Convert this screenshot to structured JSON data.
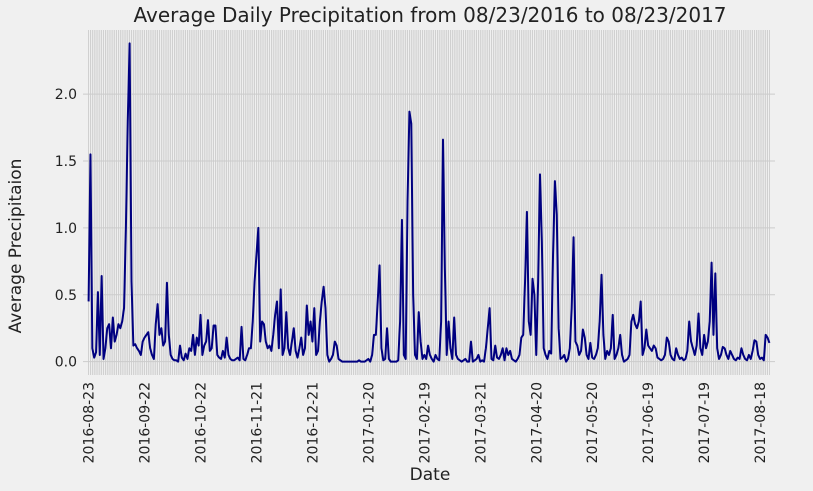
{
  "chart_data": {
    "type": "line",
    "title": "Average Daily Precipitation from 08/23/2016 to 08/23/2017",
    "x_label": "Date",
    "y_label": "Average Precipitaion",
    "categories": [
      "2016-08-23",
      null,
      null,
      null,
      null,
      null,
      null,
      null,
      null,
      null,
      null,
      null,
      null,
      null,
      null,
      null,
      null,
      null,
      null,
      null,
      null,
      null,
      null,
      null,
      null,
      null,
      null,
      null,
      null,
      null,
      "2016-09-22",
      null,
      null,
      null,
      null,
      null,
      null,
      null,
      null,
      null,
      null,
      null,
      null,
      null,
      null,
      null,
      null,
      null,
      null,
      null,
      null,
      null,
      null,
      null,
      null,
      null,
      null,
      null,
      null,
      null,
      "2016-10-22",
      null,
      null,
      null,
      null,
      null,
      null,
      null,
      null,
      null,
      null,
      null,
      null,
      null,
      null,
      null,
      null,
      null,
      null,
      null,
      null,
      null,
      null,
      null,
      null,
      null,
      null,
      null,
      null,
      null,
      "2016-11-21",
      null,
      null,
      null,
      null,
      null,
      null,
      null,
      null,
      null,
      null,
      null,
      null,
      null,
      null,
      null,
      null,
      null,
      null,
      null,
      null,
      null,
      null,
      null,
      null,
      null,
      null,
      null,
      null,
      null,
      "2016-12-21",
      null,
      null,
      null,
      null,
      null,
      null,
      null,
      null,
      null,
      null,
      null,
      null,
      null,
      null,
      null,
      null,
      null,
      null,
      null,
      null,
      null,
      null,
      null,
      null,
      null,
      null,
      null,
      null,
      null,
      "2017-01-20",
      null,
      null,
      null,
      null,
      null,
      null,
      null,
      null,
      null,
      null,
      null,
      null,
      null,
      null,
      null,
      null,
      null,
      null,
      null,
      null,
      null,
      null,
      null,
      null,
      null,
      null,
      null,
      null,
      null,
      "2017-02-19",
      null,
      null,
      null,
      null,
      null,
      null,
      null,
      null,
      null,
      null,
      null,
      null,
      null,
      null,
      null,
      null,
      null,
      null,
      null,
      null,
      null,
      null,
      null,
      null,
      null,
      null,
      null,
      null,
      null,
      "2017-03-21",
      null,
      null,
      null,
      null,
      null,
      null,
      null,
      null,
      null,
      null,
      null,
      null,
      null,
      null,
      null,
      null,
      null,
      null,
      null,
      null,
      null,
      null,
      null,
      null,
      null,
      null,
      null,
      null,
      null,
      "2017-04-20",
      null,
      null,
      null,
      null,
      null,
      null,
      null,
      null,
      null,
      null,
      null,
      null,
      null,
      null,
      null,
      null,
      null,
      null,
      null,
      null,
      null,
      null,
      null,
      null,
      null,
      null,
      null,
      null,
      null,
      "2017-05-20",
      null,
      null,
      null,
      null,
      null,
      null,
      null,
      null,
      null,
      null,
      null,
      null,
      null,
      null,
      null,
      null,
      null,
      null,
      null,
      null,
      null,
      null,
      null,
      null,
      null,
      null,
      null,
      null,
      null,
      "2017-06-19",
      null,
      null,
      null,
      null,
      null,
      null,
      null,
      null,
      null,
      null,
      null,
      null,
      null,
      null,
      null,
      null,
      null,
      null,
      null,
      null,
      null,
      null,
      null,
      null,
      null,
      null,
      null,
      null,
      null,
      "2017-07-19",
      null,
      null,
      null,
      null,
      null,
      null,
      null,
      null,
      null,
      null,
      null,
      null,
      null,
      null,
      null,
      null,
      null,
      null,
      null,
      null,
      null,
      null,
      null,
      null,
      null,
      null,
      null,
      null,
      null,
      "2017-08-18",
      null,
      null,
      null,
      null,
      null
    ],
    "series": [
      {
        "color": "#000080",
        "values": [
          0.45,
          1.55,
          0.1,
          0.03,
          0.07,
          0.52,
          0.05,
          0.64,
          0.02,
          0.1,
          0.25,
          0.28,
          0.1,
          0.33,
          0.15,
          0.2,
          0.28,
          0.25,
          0.3,
          0.4,
          1.0,
          1.8,
          2.38,
          0.6,
          0.12,
          0.13,
          0.1,
          0.08,
          0.05,
          0.15,
          0.18,
          0.2,
          0.22,
          0.1,
          0.05,
          0.02,
          0.28,
          0.43,
          0.2,
          0.25,
          0.12,
          0.15,
          0.59,
          0.2,
          0.05,
          0.02,
          0.01,
          0.01,
          0.0,
          0.12,
          0.03,
          0.01,
          0.06,
          0.02,
          0.1,
          0.08,
          0.2,
          0.05,
          0.18,
          0.12,
          0.35,
          0.05,
          0.12,
          0.15,
          0.31,
          0.08,
          0.1,
          0.27,
          0.27,
          0.05,
          0.03,
          0.02,
          0.08,
          0.03,
          0.18,
          0.05,
          0.02,
          0.01,
          0.01,
          0.02,
          0.03,
          0.01,
          0.26,
          0.02,
          0.01,
          0.05,
          0.1,
          0.1,
          0.3,
          0.6,
          0.8,
          1.0,
          0.15,
          0.3,
          0.28,
          0.15,
          0.1,
          0.12,
          0.08,
          0.2,
          0.35,
          0.45,
          0.1,
          0.54,
          0.05,
          0.1,
          0.37,
          0.1,
          0.05,
          0.15,
          0.25,
          0.08,
          0.03,
          0.1,
          0.18,
          0.05,
          0.1,
          0.42,
          0.2,
          0.3,
          0.15,
          0.4,
          0.05,
          0.08,
          0.3,
          0.45,
          0.56,
          0.4,
          0.05,
          0.0,
          0.02,
          0.05,
          0.15,
          0.12,
          0.02,
          0.01,
          0.0,
          0.0,
          0.0,
          0.0,
          0.0,
          0.0,
          0.0,
          0.0,
          0.0,
          0.01,
          0.0,
          0.0,
          0.0,
          0.01,
          0.02,
          0.0,
          0.05,
          0.2,
          0.2,
          0.45,
          0.72,
          0.1,
          0.01,
          0.02,
          0.25,
          0.02,
          0.0,
          0.0,
          0.0,
          0.0,
          0.01,
          0.3,
          1.06,
          0.05,
          0.02,
          1.2,
          1.87,
          1.78,
          0.5,
          0.05,
          0.02,
          0.37,
          0.15,
          0.02,
          0.05,
          0.02,
          0.12,
          0.05,
          0.02,
          0.0,
          0.05,
          0.02,
          0.01,
          0.3,
          1.66,
          0.7,
          0.05,
          0.3,
          0.1,
          0.02,
          0.33,
          0.05,
          0.02,
          0.01,
          0.0,
          0.01,
          0.02,
          0.0,
          0.0,
          0.15,
          0.0,
          0.01,
          0.02,
          0.05,
          0.0,
          0.01,
          0.0,
          0.1,
          0.25,
          0.4,
          0.02,
          0.01,
          0.12,
          0.03,
          0.02,
          0.05,
          0.1,
          0.01,
          0.1,
          0.05,
          0.08,
          0.02,
          0.01,
          0.0,
          0.02,
          0.05,
          0.18,
          0.2,
          0.6,
          1.12,
          0.3,
          0.2,
          0.62,
          0.5,
          0.05,
          0.6,
          1.4,
          0.9,
          0.1,
          0.05,
          0.02,
          0.08,
          0.06,
          0.8,
          1.35,
          1.1,
          0.25,
          0.02,
          0.03,
          0.05,
          0.0,
          0.02,
          0.1,
          0.4,
          0.93,
          0.15,
          0.12,
          0.05,
          0.08,
          0.24,
          0.18,
          0.05,
          0.02,
          0.14,
          0.03,
          0.02,
          0.05,
          0.1,
          0.3,
          0.65,
          0.2,
          0.02,
          0.08,
          0.05,
          0.1,
          0.35,
          0.02,
          0.05,
          0.1,
          0.2,
          0.05,
          0.0,
          0.01,
          0.02,
          0.05,
          0.3,
          0.35,
          0.28,
          0.25,
          0.3,
          0.45,
          0.05,
          0.1,
          0.24,
          0.12,
          0.1,
          0.08,
          0.12,
          0.1,
          0.03,
          0.02,
          0.01,
          0.02,
          0.05,
          0.18,
          0.15,
          0.05,
          0.02,
          0.01,
          0.1,
          0.05,
          0.02,
          0.03,
          0.01,
          0.02,
          0.08,
          0.3,
          0.15,
          0.1,
          0.05,
          0.12,
          0.36,
          0.1,
          0.05,
          0.2,
          0.1,
          0.15,
          0.3,
          0.74,
          0.2,
          0.66,
          0.1,
          0.02,
          0.05,
          0.11,
          0.1,
          0.05,
          0.02,
          0.08,
          0.05,
          0.02,
          0.01,
          0.03,
          0.02,
          0.1,
          0.05,
          0.02,
          0.01,
          0.05,
          0.02,
          0.08,
          0.16,
          0.15,
          0.05,
          0.02,
          0.03,
          0.01,
          0.2,
          0.18,
          0.14
        ]
      }
    ],
    "ylim": [
      -0.1,
      2.48
    ],
    "yticks": [
      {
        "value": 0,
        "label": "0.0"
      },
      {
        "value": 0.5,
        "label": "0.5"
      },
      {
        "value": 1,
        "label": "1.0"
      },
      {
        "value": 1.5,
        "label": "1.5"
      },
      {
        "value": 2,
        "label": "2.0"
      }
    ],
    "grid": true
  }
}
